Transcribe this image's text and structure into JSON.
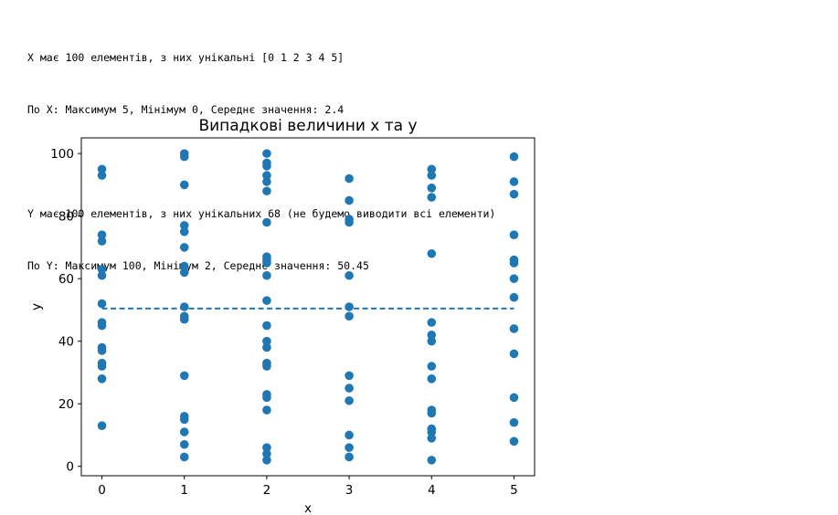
{
  "output": {
    "lines": [
      "X має 100 елементів, з них унікальні [0 1 2 3 4 5]",
      "По X: Максимум 5, Мінімум 0, Середнє значення: 2.4",
      "Y має 100 елементів, з них унікальних 68 (не будемо виводити всі елементи)",
      "По Y: Максимум 100, Мінімум 2, Середнє значення: 50.45"
    ]
  },
  "chart_data": {
    "type": "scatter",
    "title": "Випадкові величини х та у",
    "xlabel": "x",
    "ylabel": "y",
    "xlim": [
      -0.25,
      5.25
    ],
    "ylim": [
      -3,
      105
    ],
    "xticks": [
      0,
      1,
      2,
      3,
      4,
      5
    ],
    "yticks": [
      0,
      20,
      40,
      60,
      80,
      100
    ],
    "grid": false,
    "point_color": "#1f77b4",
    "mean_line": {
      "y": 50.45,
      "x_range": [
        0,
        5
      ],
      "style": "dashed",
      "color": "#1f77b4"
    },
    "points": [
      [
        0,
        95
      ],
      [
        0,
        93
      ],
      [
        0,
        74
      ],
      [
        0,
        72
      ],
      [
        0,
        63
      ],
      [
        0,
        61
      ],
      [
        0,
        52
      ],
      [
        0,
        46
      ],
      [
        0,
        45
      ],
      [
        0,
        38
      ],
      [
        0,
        37
      ],
      [
        0,
        33
      ],
      [
        0,
        32
      ],
      [
        0,
        28
      ],
      [
        0,
        13
      ],
      [
        1,
        100
      ],
      [
        1,
        99
      ],
      [
        1,
        90
      ],
      [
        1,
        77
      ],
      [
        1,
        75
      ],
      [
        1,
        70
      ],
      [
        1,
        64
      ],
      [
        1,
        62
      ],
      [
        1,
        51
      ],
      [
        1,
        48
      ],
      [
        1,
        47
      ],
      [
        1,
        29
      ],
      [
        1,
        16
      ],
      [
        1,
        15
      ],
      [
        1,
        11
      ],
      [
        1,
        7
      ],
      [
        1,
        3
      ],
      [
        2,
        100
      ],
      [
        2,
        97
      ],
      [
        2,
        96
      ],
      [
        2,
        93
      ],
      [
        2,
        91
      ],
      [
        2,
        88
      ],
      [
        2,
        78
      ],
      [
        2,
        67
      ],
      [
        2,
        66
      ],
      [
        2,
        65
      ],
      [
        2,
        61
      ],
      [
        2,
        53
      ],
      [
        2,
        45
      ],
      [
        2,
        40
      ],
      [
        2,
        38
      ],
      [
        2,
        33
      ],
      [
        2,
        32
      ],
      [
        2,
        23
      ],
      [
        2,
        22
      ],
      [
        2,
        18
      ],
      [
        2,
        6
      ],
      [
        2,
        4
      ],
      [
        2,
        2
      ],
      [
        3,
        92
      ],
      [
        3,
        85
      ],
      [
        3,
        79
      ],
      [
        3,
        78
      ],
      [
        3,
        61
      ],
      [
        3,
        51
      ],
      [
        3,
        48
      ],
      [
        3,
        29
      ],
      [
        3,
        25
      ],
      [
        3,
        21
      ],
      [
        3,
        10
      ],
      [
        3,
        6
      ],
      [
        3,
        3
      ],
      [
        4,
        95
      ],
      [
        4,
        93
      ],
      [
        4,
        89
      ],
      [
        4,
        86
      ],
      [
        4,
        68
      ],
      [
        4,
        46
      ],
      [
        4,
        42
      ],
      [
        4,
        40
      ],
      [
        4,
        32
      ],
      [
        4,
        28
      ],
      [
        4,
        18
      ],
      [
        4,
        17
      ],
      [
        4,
        12
      ],
      [
        4,
        11
      ],
      [
        4,
        9
      ],
      [
        4,
        2
      ],
      [
        5,
        99
      ],
      [
        5,
        91
      ],
      [
        5,
        87
      ],
      [
        5,
        74
      ],
      [
        5,
        66
      ],
      [
        5,
        65
      ],
      [
        5,
        60
      ],
      [
        5,
        54
      ],
      [
        5,
        44
      ],
      [
        5,
        36
      ],
      [
        5,
        22
      ],
      [
        5,
        14
      ],
      [
        5,
        8
      ]
    ]
  }
}
